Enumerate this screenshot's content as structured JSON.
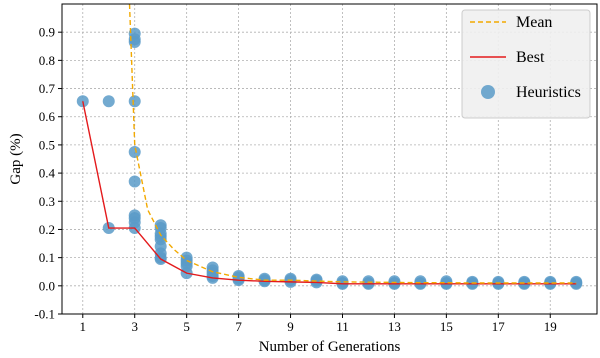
{
  "chart_data": {
    "type": "scatter",
    "title": "",
    "xlabel": "Number of Generations",
    "ylabel": "Gap (%)",
    "xlim": [
      0.2,
      20.8
    ],
    "ylim": [
      -0.1,
      1.0
    ],
    "xticks": [
      1,
      3,
      5,
      7,
      9,
      11,
      13,
      15,
      17,
      19
    ],
    "yticks": [
      -0.1,
      0.0,
      0.1,
      0.2,
      0.3,
      0.4,
      0.5,
      0.6,
      0.7,
      0.8,
      0.9
    ],
    "grid": true,
    "legend_position": "top-right",
    "series": [
      {
        "name": "Mean",
        "kind": "line",
        "style": "dashed",
        "color": "#f2a900",
        "x": [
          2.8,
          3,
          3.5,
          4,
          4.5,
          5,
          6,
          7,
          8,
          9,
          10,
          11,
          12,
          13,
          14,
          15,
          16,
          17,
          18,
          19,
          20
        ],
        "y": [
          1.0,
          0.5,
          0.27,
          0.18,
          0.13,
          0.09,
          0.05,
          0.03,
          0.02,
          0.02,
          0.017,
          0.014,
          0.013,
          0.012,
          0.011,
          0.011,
          0.01,
          0.01,
          0.01,
          0.01,
          0.01
        ]
      },
      {
        "name": "Best",
        "kind": "line",
        "style": "solid",
        "color": "#e41a1c",
        "x": [
          1,
          2,
          3,
          4,
          5,
          6,
          7,
          8,
          9,
          10,
          11,
          12,
          13,
          14,
          15,
          16,
          17,
          18,
          19,
          20
        ],
        "y": [
          0.655,
          0.205,
          0.205,
          0.095,
          0.045,
          0.028,
          0.02,
          0.016,
          0.014,
          0.012,
          0.007,
          0.007,
          0.007,
          0.007,
          0.007,
          0.007,
          0.007,
          0.007,
          0.007,
          0.007
        ]
      },
      {
        "name": "Heuristics",
        "kind": "scatter",
        "color": "#5b9bc8",
        "points": [
          [
            1,
            0.655
          ],
          [
            2,
            0.655
          ],
          [
            2,
            0.205
          ],
          [
            3,
            0.895
          ],
          [
            3,
            0.875
          ],
          [
            3,
            0.865
          ],
          [
            3,
            0.655
          ],
          [
            3,
            0.475
          ],
          [
            3,
            0.37
          ],
          [
            3,
            0.25
          ],
          [
            3,
            0.24
          ],
          [
            3,
            0.225
          ],
          [
            3,
            0.205
          ],
          [
            4,
            0.215
          ],
          [
            4,
            0.205
          ],
          [
            4,
            0.185
          ],
          [
            4,
            0.175
          ],
          [
            4,
            0.165
          ],
          [
            4,
            0.14
          ],
          [
            4,
            0.115
          ],
          [
            4,
            0.1
          ],
          [
            4,
            0.095
          ],
          [
            5,
            0.1
          ],
          [
            5,
            0.09
          ],
          [
            5,
            0.08
          ],
          [
            5,
            0.07
          ],
          [
            5,
            0.045
          ],
          [
            6,
            0.065
          ],
          [
            6,
            0.055
          ],
          [
            6,
            0.045
          ],
          [
            6,
            0.035
          ],
          [
            6,
            0.028
          ],
          [
            7,
            0.035
          ],
          [
            7,
            0.03
          ],
          [
            7,
            0.025
          ],
          [
            7,
            0.02
          ],
          [
            8,
            0.025
          ],
          [
            8,
            0.02
          ],
          [
            8,
            0.016
          ],
          [
            9,
            0.025
          ],
          [
            9,
            0.02
          ],
          [
            9,
            0.014
          ],
          [
            10,
            0.022
          ],
          [
            10,
            0.018
          ],
          [
            10,
            0.012
          ],
          [
            11,
            0.016
          ],
          [
            11,
            0.01
          ],
          [
            11,
            0.007
          ],
          [
            12,
            0.016
          ],
          [
            12,
            0.01
          ],
          [
            12,
            0.007
          ],
          [
            13,
            0.016
          ],
          [
            13,
            0.01
          ],
          [
            13,
            0.007
          ],
          [
            14,
            0.016
          ],
          [
            14,
            0.01
          ],
          [
            14,
            0.007
          ],
          [
            15,
            0.016
          ],
          [
            15,
            0.01
          ],
          [
            15,
            0.007
          ],
          [
            16,
            0.014
          ],
          [
            16,
            0.01
          ],
          [
            16,
            0.007
          ],
          [
            17,
            0.014
          ],
          [
            17,
            0.01
          ],
          [
            17,
            0.007
          ],
          [
            18,
            0.014
          ],
          [
            18,
            0.01
          ],
          [
            18,
            0.007
          ],
          [
            19,
            0.014
          ],
          [
            19,
            0.01
          ],
          [
            19,
            0.007
          ],
          [
            20,
            0.014
          ],
          [
            20,
            0.01
          ],
          [
            20,
            0.007
          ]
        ]
      }
    ]
  }
}
